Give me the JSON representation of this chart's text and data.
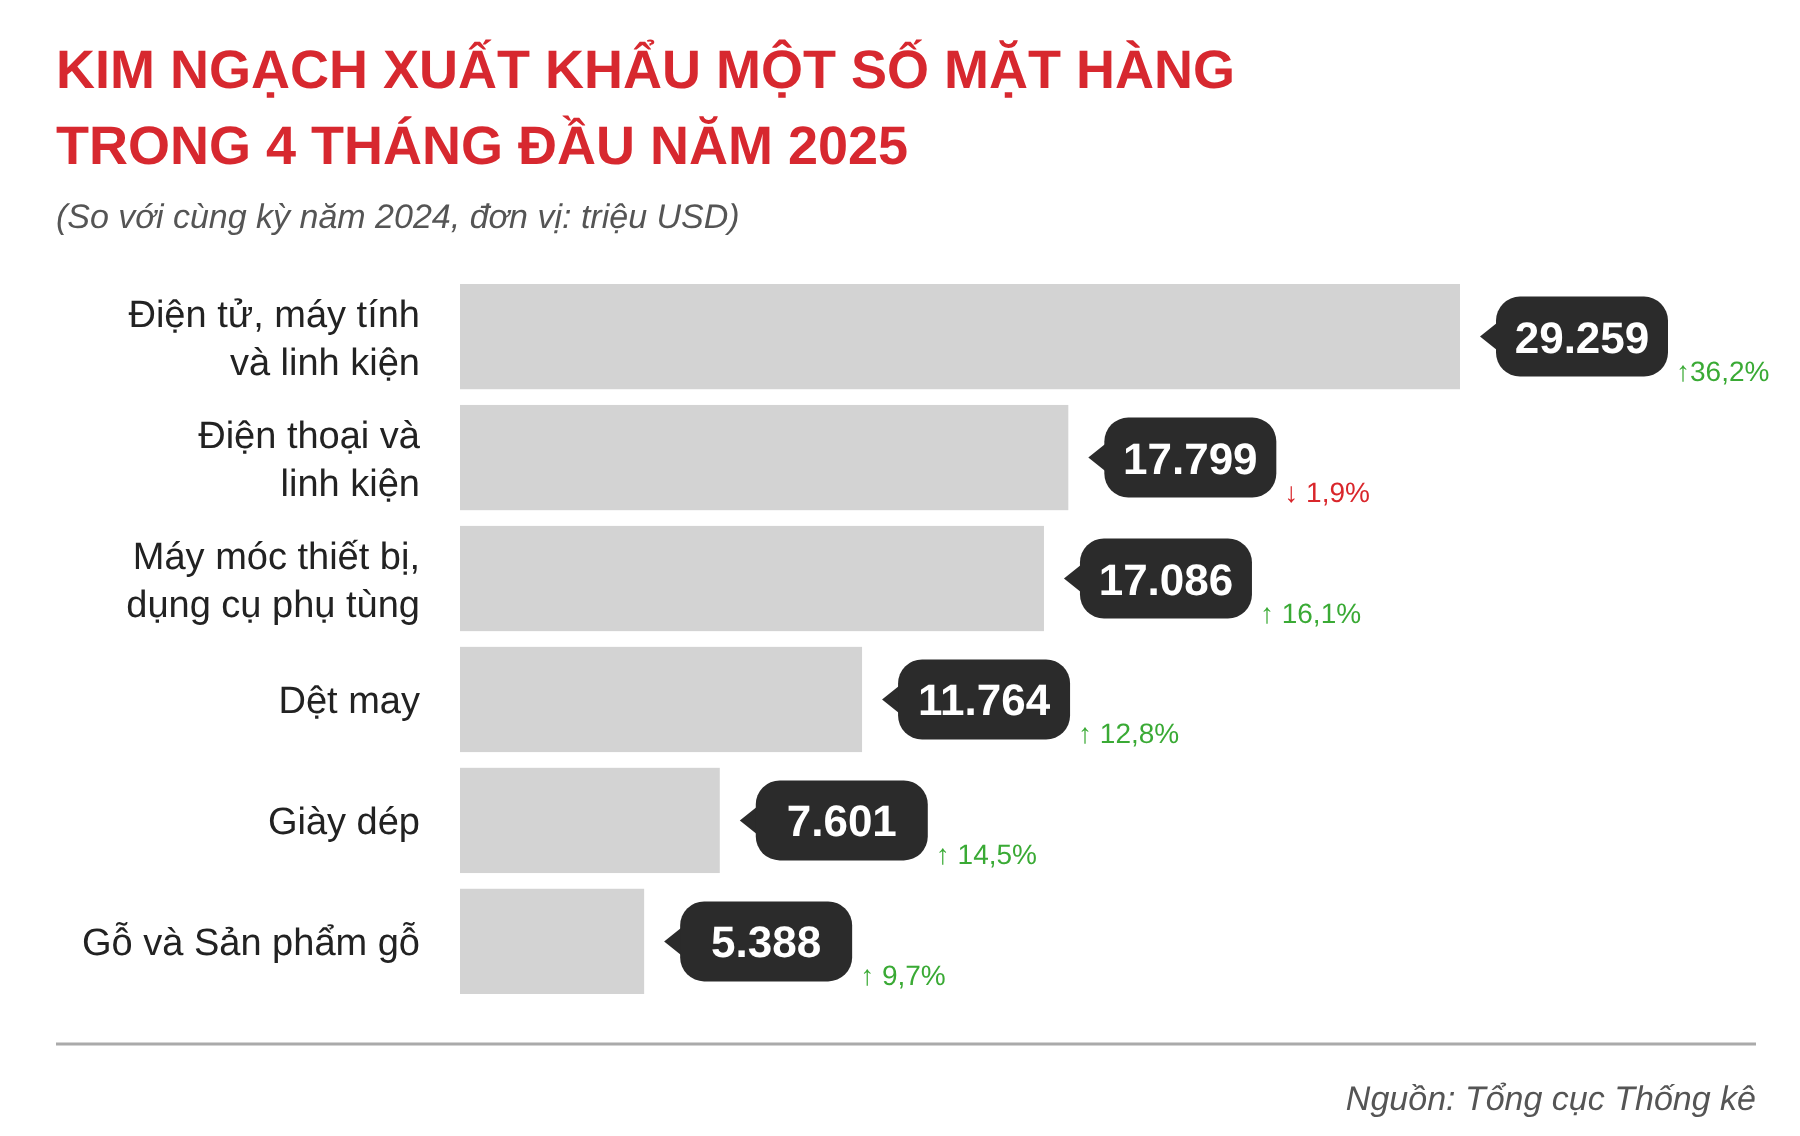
{
  "chart_data": {
    "type": "bar",
    "orientation": "horizontal",
    "title": "KIM NGẠCH XUẤT KHẨU MỘT SỐ MẶT HÀNG\nTRONG 4 THÁNG ĐẦU NĂM 2025",
    "subtitle": "(So với cùng kỳ năm 2024, đơn vị: triệu USD)",
    "categories": [
      "Điện tử, máy tính và linh kiện",
      "Điện thoại và linh kiện",
      "Máy móc thiết bị, dụng cụ phụ tùng",
      "Dệt may",
      "Giày dép",
      "Gỗ và Sản phẩm gỗ"
    ],
    "values": [
      29259,
      17799,
      17086,
      11764,
      7601,
      5388
    ],
    "value_labels": [
      "29.259",
      "17.799",
      "17.086",
      "11.764",
      "7.601",
      "5.388"
    ],
    "color": "#d3d3d3",
    "annotations": [
      "↑36,2%",
      "↓ 1,9%",
      "↑ 16,1%",
      "↑ 12,8%",
      "↑ 14,5%",
      "↑ 9,7%",
      "Nguồn: Tổng cục Thống kê"
    ]
  }
}
